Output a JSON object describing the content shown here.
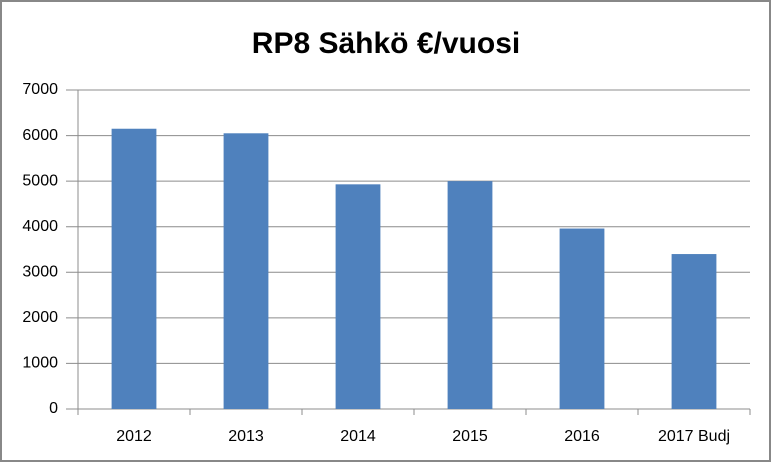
{
  "chart_data": {
    "type": "bar",
    "title": "RP8 Sähkö €/vuosi",
    "categories": [
      "2012",
      "2013",
      "2014",
      "2015",
      "2016",
      "2017 Budj"
    ],
    "values": [
      6150,
      6050,
      4930,
      5000,
      3960,
      3400
    ],
    "color": "#4f81bd",
    "ylim": [
      0,
      7000
    ],
    "yticks": [
      0,
      1000,
      2000,
      3000,
      4000,
      5000,
      6000,
      7000
    ],
    "grid": true
  }
}
